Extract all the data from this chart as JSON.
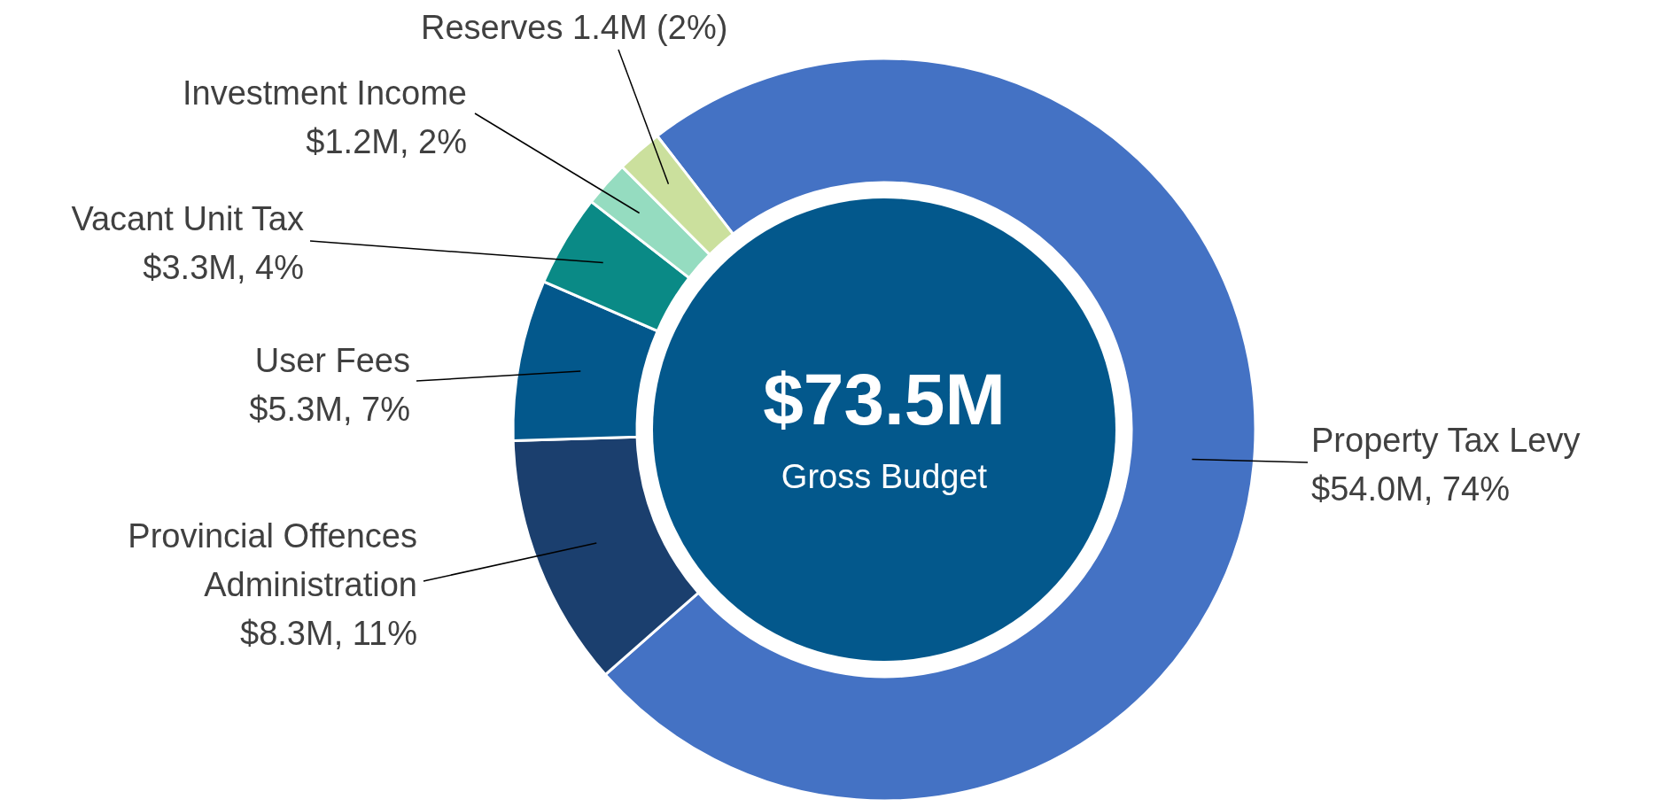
{
  "chart_data": {
    "type": "donut",
    "categories": [
      "Property Tax Levy",
      "Provincial Offences Administration",
      "User Fees",
      "Vacant Unit Tax",
      "Investment Income",
      "Reserves"
    ],
    "values": [
      74,
      11,
      7,
      4,
      2,
      2
    ],
    "colors": [
      "#4472c4",
      "#1b3f6e",
      "#03588c",
      "#0a8a86",
      "#95dcc0",
      "#cbe09d"
    ],
    "value_labels": [
      "$54.0M, 74%",
      "$8.3M, 11%",
      "$5.3M, 7%",
      "$3.3M, 4%",
      "$1.2M, 2%",
      "1.4M (2%)"
    ],
    "annotations": [
      "$73.5M",
      "Gross Budget"
    ]
  }
}
